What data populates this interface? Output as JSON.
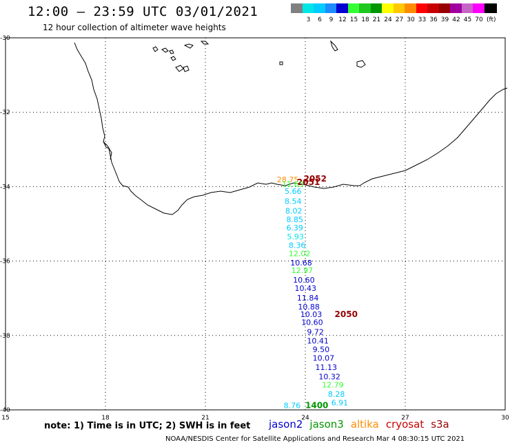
{
  "header": {
    "title": "12:00 – 23:59 UTC 03/01/2021",
    "subtitle": "12 hour collection of altimeter wave heights"
  },
  "legend": {
    "unit": "(ft)",
    "bins": [
      {
        "label": "",
        "color": "#808080"
      },
      {
        "label": "3",
        "color": "#00e5e5"
      },
      {
        "label": "6",
        "color": "#00ccff"
      },
      {
        "label": "9",
        "color": "#1e8cff"
      },
      {
        "label": "12",
        "color": "#0000d0"
      },
      {
        "label": "15",
        "color": "#33ff33"
      },
      {
        "label": "18",
        "color": "#1ec81e"
      },
      {
        "label": "21",
        "color": "#009600"
      },
      {
        "label": "24",
        "color": "#ffff00"
      },
      {
        "label": "27",
        "color": "#ffc800"
      },
      {
        "label": "30",
        "color": "#ff8c00"
      },
      {
        "label": "33",
        "color": "#ff0000"
      },
      {
        "label": "36",
        "color": "#c80000"
      },
      {
        "label": "39",
        "color": "#960000"
      },
      {
        "label": "42",
        "color": "#a000a0"
      },
      {
        "label": "45",
        "color": "#c864c8"
      },
      {
        "label": "70",
        "color": "#ff00ff"
      },
      {
        "label": "",
        "color": "#000000"
      }
    ]
  },
  "map": {
    "lon_range": [
      15,
      30
    ],
    "lat_range": [
      -40,
      -30
    ],
    "lon_ticks": [
      "15",
      "18",
      "21",
      "24",
      "27",
      "30"
    ],
    "lat_ticks": [
      "-30",
      "-32",
      "-34",
      "-36",
      "-38",
      "-40"
    ],
    "observations": [
      {
        "text": "28.75",
        "lon": 23.15,
        "lat": -33.88,
        "color": "#ff8c00"
      },
      {
        "text": "2052",
        "lon": 23.95,
        "lat": -33.86,
        "color": "#960000",
        "bold": true
      },
      {
        "text": "2051",
        "lon": 23.75,
        "lat": -33.96,
        "color": "#960000",
        "bold": true
      },
      {
        "text": "11.63",
        "lon": 23.3,
        "lat": -34.0,
        "color": "#33ff33"
      },
      {
        "text": "5.66",
        "lon": 23.38,
        "lat": -34.2,
        "color": "#00ccff"
      },
      {
        "text": "8.54",
        "lon": 23.38,
        "lat": -34.46,
        "color": "#00ccff"
      },
      {
        "text": "8.02",
        "lon": 23.4,
        "lat": -34.72,
        "color": "#00ccff"
      },
      {
        "text": "8.85",
        "lon": 23.43,
        "lat": -34.95,
        "color": "#00ccff"
      },
      {
        "text": "6.39",
        "lon": 23.43,
        "lat": -35.18,
        "color": "#00ccff"
      },
      {
        "text": "5.93",
        "lon": 23.45,
        "lat": -35.42,
        "color": "#00e5e5"
      },
      {
        "text": "8.36",
        "lon": 23.5,
        "lat": -35.65,
        "color": "#00ccff"
      },
      {
        "text": "12.02",
        "lon": 23.5,
        "lat": -35.87,
        "color": "#33ff33"
      },
      {
        "text": "10.68",
        "lon": 23.55,
        "lat": -36.12,
        "color": "#0000d0"
      },
      {
        "text": "12.97",
        "lon": 23.58,
        "lat": -36.32,
        "color": "#33ff33"
      },
      {
        "text": "10.60",
        "lon": 23.63,
        "lat": -36.58,
        "color": "#0000d0"
      },
      {
        "text": "10.43",
        "lon": 23.68,
        "lat": -36.8,
        "color": "#0000d0"
      },
      {
        "text": "11.84",
        "lon": 23.75,
        "lat": -37.06,
        "color": "#0000d0"
      },
      {
        "text": "10.88",
        "lon": 23.78,
        "lat": -37.3,
        "color": "#0000d0"
      },
      {
        "text": "10.03",
        "lon": 23.85,
        "lat": -37.5,
        "color": "#0000d0"
      },
      {
        "text": "2050",
        "lon": 24.88,
        "lat": -37.5,
        "color": "#960000",
        "bold": true
      },
      {
        "text": "10.60",
        "lon": 23.88,
        "lat": -37.72,
        "color": "#0000d0"
      },
      {
        "text": "9.72",
        "lon": 24.05,
        "lat": -37.98,
        "color": "#0000d0"
      },
      {
        "text": "10.41",
        "lon": 24.05,
        "lat": -38.22,
        "color": "#0000d0"
      },
      {
        "text": "9.50",
        "lon": 24.22,
        "lat": -38.45,
        "color": "#0000d0"
      },
      {
        "text": "10.07",
        "lon": 24.22,
        "lat": -38.68,
        "color": "#0000d0"
      },
      {
        "text": "11.13",
        "lon": 24.3,
        "lat": -38.93,
        "color": "#0000d0"
      },
      {
        "text": "10.32",
        "lon": 24.4,
        "lat": -39.18,
        "color": "#0000d0"
      },
      {
        "text": "12.79",
        "lon": 24.5,
        "lat": -39.4,
        "color": "#33ff33"
      },
      {
        "text": "8.28",
        "lon": 24.68,
        "lat": -39.65,
        "color": "#00ccff"
      },
      {
        "text": "6.91",
        "lon": 24.78,
        "lat": -39.88,
        "color": "#00ccff"
      },
      {
        "text": "8.76",
        "lon": 23.35,
        "lat": -39.95,
        "color": "#00ccff"
      },
      {
        "text": "1400",
        "lon": 24.0,
        "lat": -39.95,
        "color": "#009600",
        "bold": true
      }
    ]
  },
  "footer": {
    "note": "note:  1) Time is in UTC;  2) SWH is in feet",
    "satellites": [
      {
        "name": "jason2",
        "color": "#0000d0"
      },
      {
        "name": "jason3",
        "color": "#009600"
      },
      {
        "name": "altika",
        "color": "#ff8c00"
      },
      {
        "name": "cryosat",
        "color": "#c80000"
      },
      {
        "name": "s3a",
        "color": "#960000"
      }
    ],
    "credit": "NOAA/NESDIS Center for Satellite Applications and Research    Mar  4 08:30:15 UTC 2021"
  }
}
